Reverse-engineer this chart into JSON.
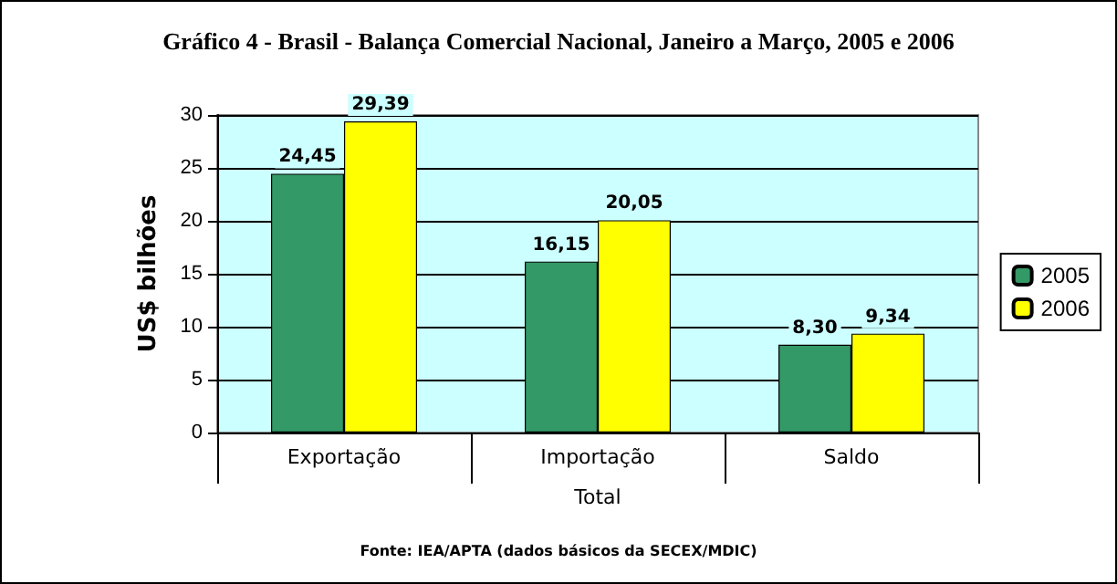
{
  "chart_data": {
    "type": "bar",
    "title": "Gráfico 4 - Brasil - Balança Comercial Nacional, Janeiro a Março, 2005 e 2006",
    "xlabel": "Total",
    "ylabel": "US$ bilhões",
    "categories": [
      "Exportação",
      "Importação",
      "Saldo"
    ],
    "series": [
      {
        "name": "2005",
        "color": "#339966",
        "values": [
          24.45,
          16.15,
          8.3
        ],
        "value_labels": [
          "24,45",
          "16,15",
          "8,30"
        ]
      },
      {
        "name": "2006",
        "color": "#ffff00",
        "values": [
          29.39,
          20.05,
          9.34
        ],
        "value_labels": [
          "29,39",
          "20,05",
          "9,34"
        ]
      }
    ],
    "ylim": [
      0,
      30
    ],
    "yticks": [
      0,
      5,
      10,
      15,
      20,
      25,
      30
    ],
    "grid": "y",
    "legend": "right",
    "annotations": [
      "Fonte: IEA/APTA (dados básicos da SECEX/MDIC)"
    ]
  }
}
